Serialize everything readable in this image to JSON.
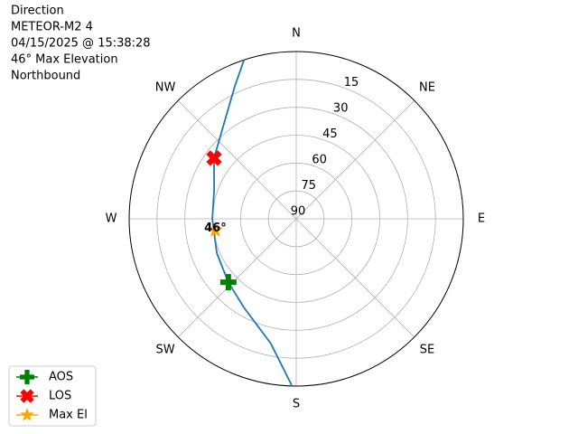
{
  "chart_data": {
    "type": "polar",
    "title_lines": [
      "Direction",
      "METEOR-M2 4",
      "04/15/2025 @ 15:38:28",
      "46° Max Elevation",
      "Northbound"
    ],
    "rlim": [
      90,
      0
    ],
    "rticks": [
      15,
      30,
      45,
      60,
      75,
      90
    ],
    "thetaticks": [
      {
        "value": 0,
        "label": "N"
      },
      {
        "value": 45,
        "label": "NE"
      },
      {
        "value": 90,
        "label": "E"
      },
      {
        "value": 135,
        "label": "SE"
      },
      {
        "value": 180,
        "label": "S"
      },
      {
        "value": 225,
        "label": "SW"
      },
      {
        "value": 270,
        "label": "W"
      },
      {
        "value": 315,
        "label": "NW"
      }
    ],
    "grid": true,
    "legend": "lower left",
    "track": {
      "color": "#1f77b4",
      "x": [
        181.6,
        191.5,
        210.6,
        227,
        246.6,
        270,
        289.4,
        306.4,
        325.1,
        335.2,
        341.8
      ],
      "values": [
        0.5,
        21.5,
        34.6,
        40,
        43.4,
        44.8,
        43.1,
        35,
        23.6,
        11.2,
        0
      ]
    },
    "series": [
      {
        "name": "AOS",
        "color": "green",
        "marker": "plus",
        "x": [
          227
        ],
        "values": [
          40
        ]
      },
      {
        "name": "LOS",
        "color": "red",
        "marker": "x",
        "x": [
          306.4
        ],
        "values": [
          35
        ]
      },
      {
        "name": "Max El",
        "color": "orange",
        "marker": "star",
        "x": [
          262
        ],
        "values": [
          46
        ],
        "value_labels": [
          "46°"
        ]
      }
    ]
  }
}
